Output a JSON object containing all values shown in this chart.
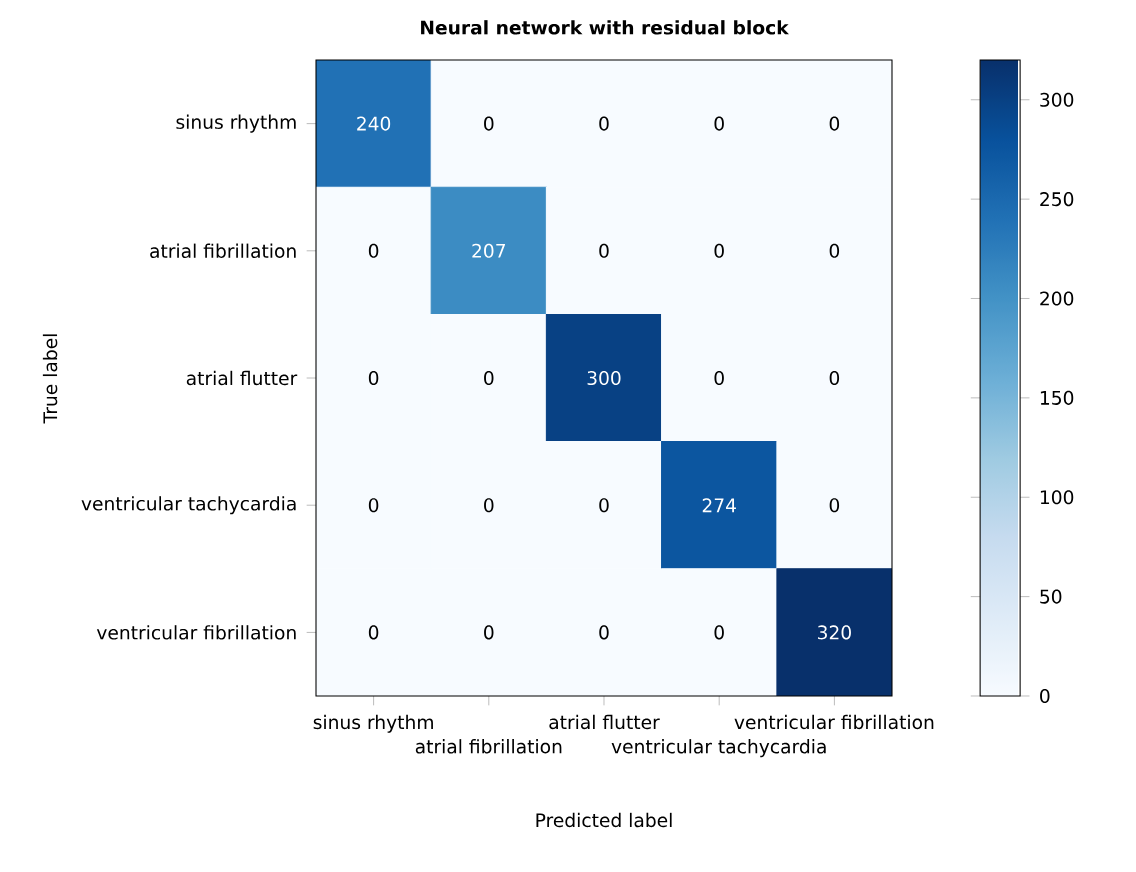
{
  "chart_data": {
    "type": "heatmap",
    "title": "Neural network with  residual block",
    "xlabel": "Predicted label",
    "ylabel": "True label",
    "categories": [
      "sinus rhythm",
      "atrial fibrillation",
      "atrial flutter",
      "ventricular tachycardia",
      "ventricular fibrillation"
    ],
    "y_categories": [
      "sinus rhythm",
      "atrial fibrillation",
      "atrial flutter",
      "ventricular tachycardia",
      "ventricular fibrillation"
    ],
    "cells": [
      [
        240,
        0,
        0,
        0,
        0
      ],
      [
        0,
        207,
        0,
        0,
        0
      ],
      [
        0,
        0,
        300,
        0,
        0
      ],
      [
        0,
        0,
        0,
        274,
        0
      ],
      [
        0,
        0,
        0,
        0,
        320
      ]
    ],
    "clim": [
      0,
      320
    ],
    "cticks": [
      0,
      50,
      100,
      150,
      200,
      250,
      300
    ],
    "data_labels": true
  }
}
